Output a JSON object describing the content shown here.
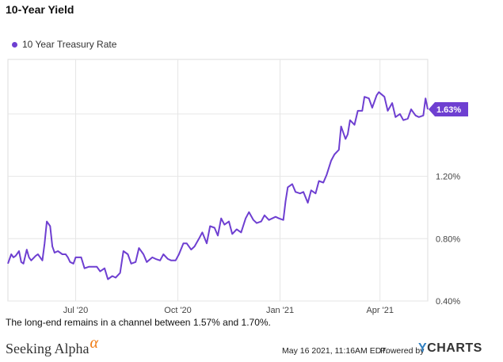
{
  "page_title": "10-Year Yield",
  "caption": "The long-end remains in a channel between 1.57% and 1.70%.",
  "footer": {
    "brand": "Seeking Alpha",
    "brand_symbol": "α",
    "timestamp": "May 16 2021, 11:16AM EDT.",
    "powered_by": "Powered by",
    "provider_y": "Y",
    "provider_rest": "CHARTS"
  },
  "colors": {
    "series": "#6e3fd1",
    "grid": "#e6e6e6",
    "axis_text": "#444444"
  },
  "chart_data": {
    "type": "line",
    "title": "10-Year Yield",
    "legend_position": "top-left",
    "grid": true,
    "y_axis_side": "right",
    "ylim": [
      0.4,
      1.95
    ],
    "yticks": [
      0.4,
      0.8,
      1.2
    ],
    "ytick_labels": [
      "0.40%",
      "0.80%",
      "1.20%"
    ],
    "xlim": [
      "2020-05-01",
      "2021-05-14"
    ],
    "xticks": [
      "2020-07-01",
      "2020-10-01",
      "2021-01-01",
      "2021-04-01"
    ],
    "xtick_labels": [
      "Jul '20",
      "Oct '20",
      "Jan '21",
      "Apr '21"
    ],
    "last_value_label": "1.63%",
    "series": [
      {
        "name": "10 Year Treasury Rate",
        "x": [
          "2020-05-01",
          "2020-05-04",
          "2020-05-06",
          "2020-05-08",
          "2020-05-11",
          "2020-05-13",
          "2020-05-15",
          "2020-05-18",
          "2020-05-20",
          "2020-05-22",
          "2020-05-26",
          "2020-05-28",
          "2020-06-01",
          "2020-06-03",
          "2020-06-05",
          "2020-06-08",
          "2020-06-10",
          "2020-06-12",
          "2020-06-15",
          "2020-06-17",
          "2020-06-19",
          "2020-06-22",
          "2020-06-24",
          "2020-06-26",
          "2020-06-29",
          "2020-07-01",
          "2020-07-06",
          "2020-07-09",
          "2020-07-13",
          "2020-07-16",
          "2020-07-20",
          "2020-07-23",
          "2020-07-27",
          "2020-07-30",
          "2020-08-03",
          "2020-08-06",
          "2020-08-10",
          "2020-08-13",
          "2020-08-17",
          "2020-08-20",
          "2020-08-24",
          "2020-08-27",
          "2020-08-31",
          "2020-09-03",
          "2020-09-08",
          "2020-09-11",
          "2020-09-15",
          "2020-09-18",
          "2020-09-22",
          "2020-09-25",
          "2020-09-29",
          "2020-10-02",
          "2020-10-06",
          "2020-10-09",
          "2020-10-13",
          "2020-10-16",
          "2020-10-20",
          "2020-10-23",
          "2020-10-27",
          "2020-10-30",
          "2020-11-03",
          "2020-11-06",
          "2020-11-09",
          "2020-11-12",
          "2020-11-16",
          "2020-11-19",
          "2020-11-23",
          "2020-11-27",
          "2020-12-01",
          "2020-12-04",
          "2020-12-08",
          "2020-12-11",
          "2020-12-15",
          "2020-12-18",
          "2020-12-22",
          "2020-12-28",
          "2020-12-31",
          "2021-01-04",
          "2021-01-06",
          "2021-01-08",
          "2021-01-12",
          "2021-01-15",
          "2021-01-19",
          "2021-01-22",
          "2021-01-26",
          "2021-01-29",
          "2021-02-02",
          "2021-02-05",
          "2021-02-09",
          "2021-02-12",
          "2021-02-16",
          "2021-02-19",
          "2021-02-23",
          "2021-02-25",
          "2021-03-01",
          "2021-03-03",
          "2021-03-05",
          "2021-03-09",
          "2021-03-12",
          "2021-03-16",
          "2021-03-18",
          "2021-03-22",
          "2021-03-25",
          "2021-03-29",
          "2021-03-31",
          "2021-04-05",
          "2021-04-08",
          "2021-04-12",
          "2021-04-15",
          "2021-04-19",
          "2021-04-22",
          "2021-04-26",
          "2021-04-29",
          "2021-05-03",
          "2021-05-06",
          "2021-05-10",
          "2021-05-12",
          "2021-05-14"
        ],
        "y": [
          0.64,
          0.7,
          0.68,
          0.69,
          0.72,
          0.65,
          0.64,
          0.73,
          0.68,
          0.66,
          0.69,
          0.7,
          0.66,
          0.77,
          0.91,
          0.88,
          0.75,
          0.71,
          0.72,
          0.71,
          0.7,
          0.7,
          0.68,
          0.65,
          0.64,
          0.68,
          0.68,
          0.61,
          0.62,
          0.62,
          0.62,
          0.59,
          0.61,
          0.54,
          0.56,
          0.55,
          0.58,
          0.72,
          0.7,
          0.64,
          0.65,
          0.74,
          0.7,
          0.65,
          0.68,
          0.67,
          0.66,
          0.7,
          0.67,
          0.66,
          0.66,
          0.7,
          0.77,
          0.77,
          0.73,
          0.75,
          0.8,
          0.84,
          0.77,
          0.88,
          0.87,
          0.82,
          0.93,
          0.89,
          0.91,
          0.83,
          0.86,
          0.84,
          0.93,
          0.97,
          0.92,
          0.9,
          0.91,
          0.95,
          0.92,
          0.94,
          0.93,
          0.92,
          1.04,
          1.13,
          1.15,
          1.1,
          1.09,
          1.1,
          1.03,
          1.11,
          1.09,
          1.17,
          1.16,
          1.21,
          1.3,
          1.34,
          1.37,
          1.52,
          1.44,
          1.47,
          1.56,
          1.53,
          1.62,
          1.62,
          1.71,
          1.7,
          1.64,
          1.72,
          1.74,
          1.71,
          1.62,
          1.67,
          1.58,
          1.6,
          1.56,
          1.57,
          1.63,
          1.59,
          1.58,
          1.59,
          1.7,
          1.63
        ]
      }
    ]
  }
}
